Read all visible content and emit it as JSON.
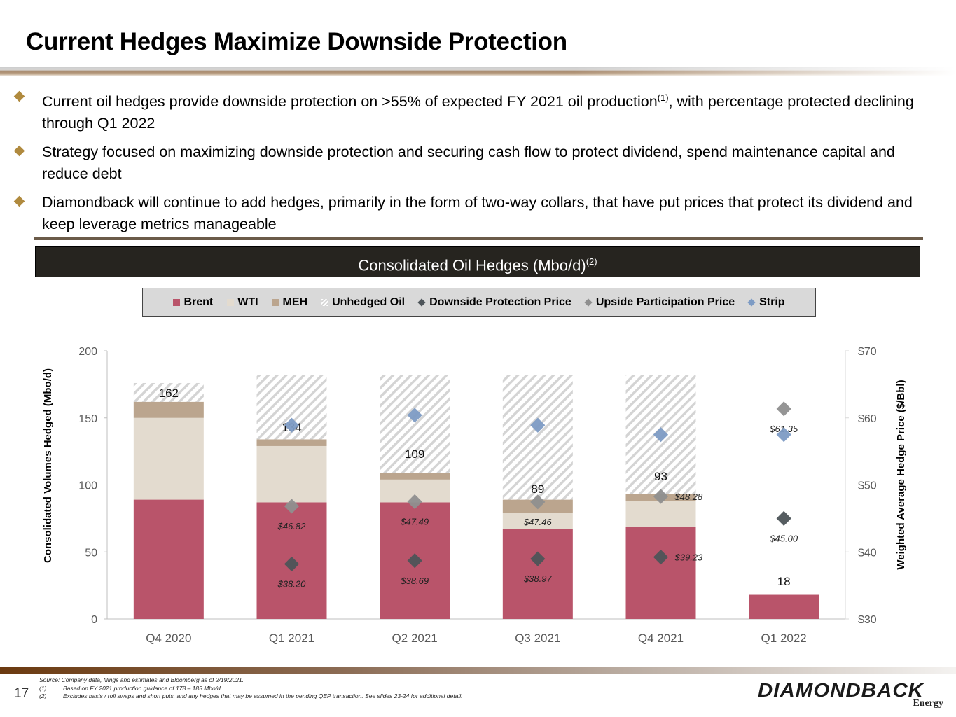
{
  "page": {
    "title": "Current Hedges Maximize Downside Protection",
    "page_number": "17"
  },
  "bullets": [
    {
      "text": "Current oil hedges provide downside protection on >55% of expected FY 2021 oil production",
      "sup": "(1)",
      "text_after": ", with percentage protected declining through Q1 2022"
    },
    {
      "text": "Strategy focused on maximizing downside protection and securing cash flow to protect dividend, spend maintenance capital and reduce debt",
      "sup": "",
      "text_after": ""
    },
    {
      "text": "Diamondback will continue to add hedges, primarily in the form of two-way collars, that have put prices that protect its dividend and keep leverage metrics manageable",
      "sup": "",
      "text_after": ""
    }
  ],
  "chart_header": {
    "text": "Consolidated Oil Hedges (Mbo/d)",
    "sup": "(2)"
  },
  "legend": [
    {
      "label": "Brent",
      "kind": "square",
      "color": "#b9546a"
    },
    {
      "label": "WTI",
      "kind": "square",
      "color": "#e3dbcf"
    },
    {
      "label": "MEH",
      "kind": "square",
      "color": "#bba58e"
    },
    {
      "label": "Unhedged Oil",
      "kind": "hatch",
      "color": "#d6d6d6"
    },
    {
      "label": "Downside Protection Price",
      "kind": "diamond",
      "color": "#4d5459"
    },
    {
      "label": "Upside Participation Price",
      "kind": "diamond",
      "color": "#8f8f8f"
    },
    {
      "label": "Strip",
      "kind": "diamond",
      "color": "#7d9bc4"
    }
  ],
  "chart_data": {
    "type": "bar",
    "stacked": true,
    "title": "Consolidated Oil Hedges (Mbo/d)",
    "categories": [
      "Q4 2020",
      "Q1 2021",
      "Q2 2021",
      "Q3 2021",
      "Q4 2021",
      "Q1 2022"
    ],
    "ylabel": "Consolidated Volumes Hedged (Mbo/d)",
    "ylim": [
      0,
      200
    ],
    "yticks": [
      "0",
      "50",
      "100",
      "150",
      "200"
    ],
    "y2label": "Weighted Average Hedge Price ($/Bbl)",
    "y2lim": [
      30,
      70
    ],
    "y2ticks": [
      "$30",
      "$40",
      "$50",
      "$60",
      "$70"
    ],
    "grid": false,
    "legend_position": "top",
    "series": [
      {
        "name": "Brent",
        "axis": "left",
        "color": "#b9546a",
        "values": [
          89,
          87,
          87,
          67,
          69,
          18
        ]
      },
      {
        "name": "WTI",
        "axis": "left",
        "color": "#e3dbcf",
        "values": [
          61,
          42,
          17,
          12,
          19,
          0
        ]
      },
      {
        "name": "MEH",
        "axis": "left",
        "color": "#bba58e",
        "values": [
          12,
          5,
          5,
          10,
          5,
          0
        ]
      },
      {
        "name": "Unhedged Oil",
        "axis": "left",
        "color": "#d6d6d6",
        "values": [
          14,
          48,
          73,
          93,
          89,
          0
        ]
      }
    ],
    "totals": [
      "162",
      "134",
      "109",
      "89",
      "93",
      "18"
    ],
    "markers": [
      {
        "name": "Downside Protection Price",
        "axis": "right",
        "color": "#4d5459",
        "values": [
          null,
          38.2,
          38.69,
          38.97,
          39.23,
          45.0
        ],
        "labels": [
          "",
          "$38.20",
          "$38.69",
          "$38.97",
          "$39.23",
          "$45.00"
        ]
      },
      {
        "name": "Upside Participation Price",
        "axis": "right",
        "color": "#8f8f8f",
        "values": [
          null,
          46.82,
          47.49,
          47.46,
          48.28,
          61.35
        ],
        "labels": [
          "",
          "$46.82",
          "$47.49",
          "$47.46",
          "$48.28",
          "$61.35"
        ]
      },
      {
        "name": "Strip",
        "axis": "right",
        "color": "#7d9bc4",
        "values": [
          null,
          58.9,
          60.4,
          58.9,
          57.5,
          57.5
        ]
      }
    ]
  },
  "footnotes": {
    "source": "Source: Company data, filings and estimates and Bloomberg as of 2/19/2021.",
    "items": [
      {
        "num": "(1)",
        "text": "Based on FY 2021 production guidance of 178 – 185 Mbo/d."
      },
      {
        "num": "(2)",
        "text": "Excludes basis / roll swaps and short puts, and any hedges that may be assumed in the pending QEP transaction. See slides 23-24 for additional detail."
      }
    ]
  },
  "logo": {
    "brand": "DIAMONDBACK",
    "sub": "Energy"
  }
}
